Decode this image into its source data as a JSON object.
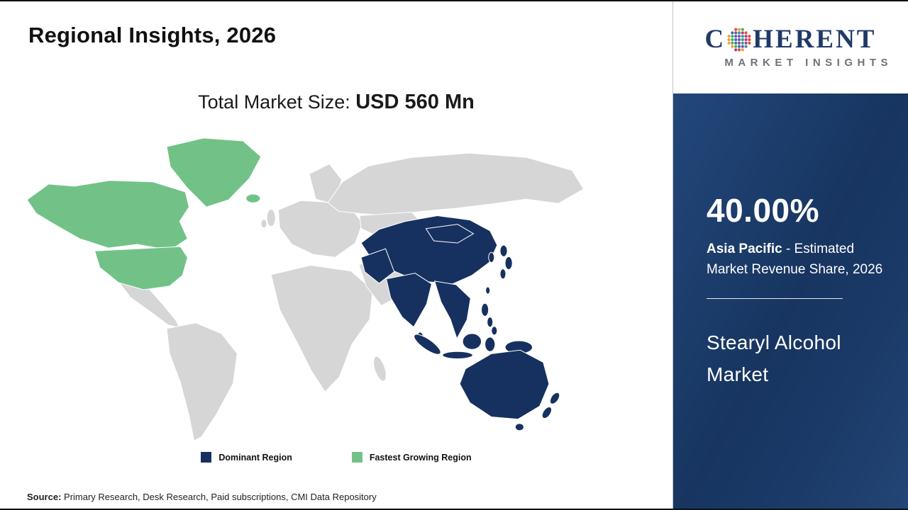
{
  "header": {
    "title": "Regional Insights, 2026"
  },
  "subtitle": {
    "prefix": "Total Market Size: ",
    "value": "USD 560 Mn"
  },
  "colors": {
    "dominant": "#16315f",
    "growing": "#72c287",
    "other": "#d6d6d6",
    "panel_bg": "#1b3a68",
    "accent_navy": "#203a68"
  },
  "legend": [
    {
      "label": "Dominant Region",
      "color": "#16315f"
    },
    {
      "label": "Fastest Growing Region",
      "color": "#72c287"
    }
  ],
  "source": {
    "label": "Source:",
    "text": " Primary Research, Desk Research, Paid subscriptions, CMI Data Repository"
  },
  "logo": {
    "line1_left": "C",
    "line1_right": "HERENT",
    "line2": "MARKET INSIGHTS"
  },
  "panel": {
    "percent": "40.00%",
    "region": "Asia Pacific",
    "region_desc": " - Estimated Market Revenue Share, 2026",
    "market": "Stearyl Alcohol Market"
  },
  "chart_data": {
    "type": "map",
    "subtype": "choropleth-world-regions",
    "title": "Regional Insights, 2026",
    "total_market_size": "USD 560 Mn",
    "market": "Stearyl Alcohol Market",
    "year": 2026,
    "regions": [
      {
        "name": "Asia Pacific",
        "role": "Dominant Region",
        "estimated_market_revenue_share_pct": 40.0,
        "color": "#16315f"
      },
      {
        "name": "North America (incl. Greenland, Iceland)",
        "role": "Fastest Growing Region",
        "color": "#72c287"
      },
      {
        "name": "Rest of World",
        "role": "Other",
        "color": "#d6d6d6"
      }
    ],
    "legend": [
      "Dominant Region",
      "Fastest Growing Region"
    ],
    "legend_position": "bottom-center",
    "source": "Primary Research, Desk Research, Paid subscriptions, CMI Data Repository"
  }
}
